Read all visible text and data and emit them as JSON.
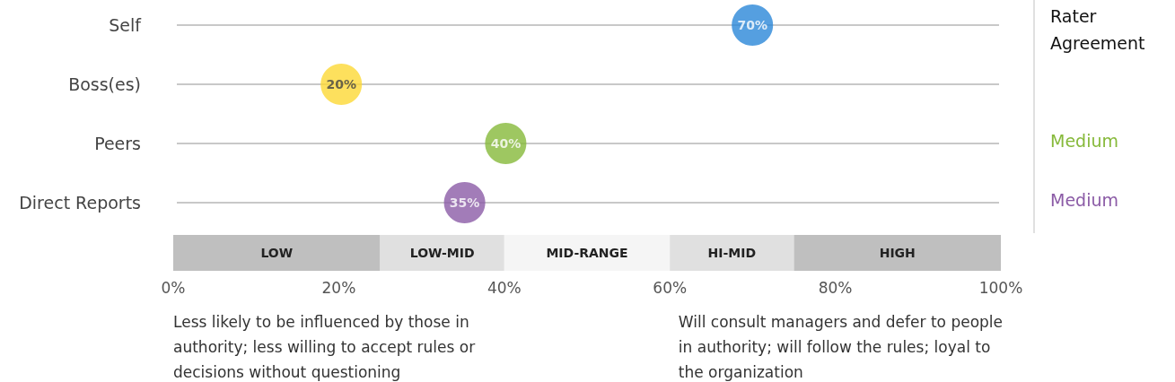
{
  "chart_data": {
    "type": "scatter",
    "orientation": "horizontal",
    "categories": [
      "Self",
      "Boss(es)",
      "Peers",
      "Direct Reports"
    ],
    "values": [
      70,
      20,
      40,
      35
    ],
    "colors": [
      "#2b87d8",
      "#fdd835",
      "#86b93a",
      "#8b5ba6"
    ],
    "value_labels": [
      "70%",
      "20%",
      "40%",
      "35%"
    ],
    "marker": "circle",
    "grid": "y",
    "xlim": [
      0,
      100
    ],
    "xticks": [
      {
        "value": 0,
        "label": "0%"
      },
      {
        "value": 20,
        "label": "20%"
      },
      {
        "value": 40,
        "label": "40%"
      },
      {
        "value": 60,
        "label": "60%"
      },
      {
        "value": 80,
        "label": "80%"
      },
      {
        "value": 100,
        "label": "100%"
      }
    ],
    "bands": [
      {
        "axis": "x",
        "from": 0,
        "to": 25,
        "label": "LOW",
        "color": "#bfbfbf"
      },
      {
        "axis": "x",
        "from": 25,
        "to": 40,
        "label": "LOW-MID",
        "color": "#e0e0e0"
      },
      {
        "axis": "x",
        "from": 40,
        "to": 60,
        "label": "MID-RANGE",
        "color": "#f5f5f5"
      },
      {
        "axis": "x",
        "from": 60,
        "to": 75,
        "label": "HI-MID",
        "color": "#e0e0e0"
      },
      {
        "axis": "x",
        "from": 75,
        "to": 100,
        "label": "HIGH",
        "color": "#bfbfbf"
      }
    ],
    "annotations": [
      "Less likely to be influenced by those in\nauthority; less willing to accept rules or\ndecisions without questioning",
      "Will consult managers and defer to people\nin authority; will follow the rules; loyal to\nthe organization",
      "Rater\nAgreement",
      "Medium",
      "Medium"
    ]
  }
}
